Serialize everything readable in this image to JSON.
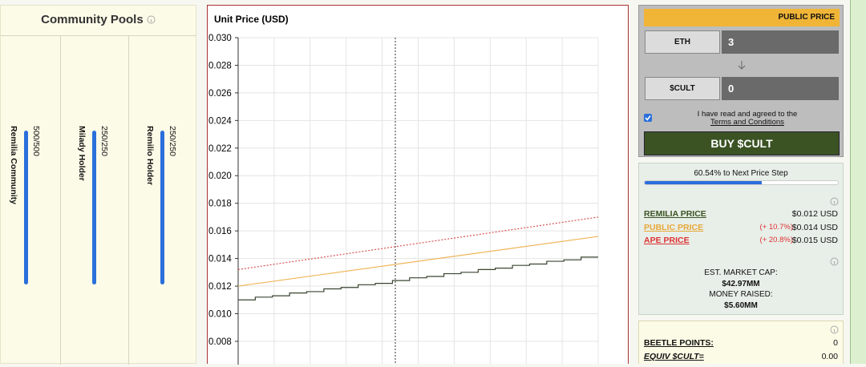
{
  "pools": {
    "title": "Community Pools",
    "items": [
      {
        "name": "Remilia Community",
        "count": "500/500"
      },
      {
        "name": "Milady Holder",
        "count": "250/250"
      },
      {
        "name": "Remilio Holder",
        "count": "250/250"
      }
    ]
  },
  "chart_data": {
    "type": "line",
    "title": "Unit Price (USD)",
    "ylim": [
      0.0064,
      0.03
    ],
    "yticks": [
      0.008,
      {
        "value": 0.01,
        "label": "0.010"
      },
      0.012,
      0.014,
      0.016,
      0.018,
      {
        "value": 0.02,
        "label": "0.020"
      },
      0.022,
      0.024,
      0.026,
      0.028,
      {
        "value": 0.03,
        "label": "0.030"
      }
    ],
    "grid": true,
    "series": [
      {
        "color": "#d9534f",
        "style": "dotted",
        "values": [
          0.0132,
          0.017
        ]
      },
      {
        "color": "#f0b55a",
        "style": "solid",
        "values": [
          0.012,
          0.0156
        ]
      },
      {
        "color": "#3a4530",
        "style": "step",
        "values": [
          0.011,
          0.0112,
          0.0113,
          0.0115,
          0.0116,
          0.0118,
          0.0119,
          0.0121,
          0.0122,
          0.0124,
          0.0126,
          0.0127,
          0.0129,
          0.013,
          0.0132,
          0.0133,
          0.0135,
          0.0136,
          0.0138,
          0.0139,
          0.0141
        ]
      }
    ]
  },
  "buy": {
    "header": "PUBLIC PRICE",
    "eth_label": "ETH",
    "eth_value": "3",
    "cult_label": "$CULT",
    "cult_value": "0",
    "terms_text": "I have read and agreed to the",
    "terms_link": "Terms and Conditions",
    "button": "BUY $CULT"
  },
  "stats": {
    "progress": {
      "value": 60.54,
      "label": "60.54% to Next Price Step"
    },
    "rows": [
      {
        "name": "REMILIA PRICE",
        "price": "$0.012 USD"
      },
      {
        "name": "PUBLIC PRICE",
        "change": "(+ 10.7%)",
        "price": "$0.014 USD"
      },
      {
        "name": "APE PRICE",
        "change": "(+ 20.8%)",
        "price": "$0.015 USD"
      }
    ],
    "market_cap_label": "EST. MARKET CAP:",
    "market_cap": "$42.97MM",
    "money_raised_label": "MONEY RAISED:",
    "money_raised": "$5.60MM"
  },
  "points": {
    "rows": [
      {
        "label": "BEETLE POINTS:",
        "value": "0"
      },
      {
        "label": "EQUIV $CULT=",
        "value": "0.00"
      }
    ]
  }
}
